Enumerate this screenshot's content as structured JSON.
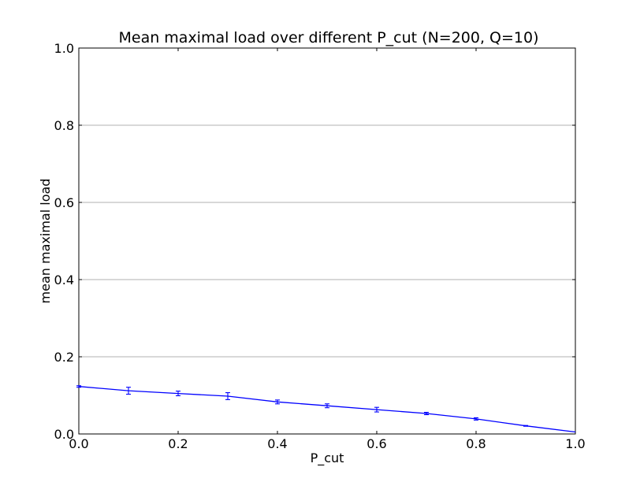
{
  "chart_data": {
    "type": "line",
    "title": "Mean maximal load over different P_cut (N=200, Q=10)",
    "xlabel": "P_cut",
    "ylabel": "mean maximal load",
    "xlim": [
      0.0,
      1.0
    ],
    "ylim": [
      0.0,
      1.0
    ],
    "xticks": [
      "0.0",
      "0.2",
      "0.4",
      "0.6",
      "0.8",
      "1.0"
    ],
    "yticks": [
      "0.0",
      "0.2",
      "0.4",
      "0.6",
      "0.8",
      "1.0"
    ],
    "grid": "y-major",
    "legend": "none",
    "series": [
      {
        "color": "#0000ff",
        "x": [
          0.0,
          0.1,
          0.2,
          0.3,
          0.4,
          0.5,
          0.6,
          0.7,
          0.8,
          0.9,
          1.0
        ],
        "y": [
          0.123,
          0.112,
          0.105,
          0.098,
          0.083,
          0.073,
          0.063,
          0.053,
          0.039,
          0.021,
          0.005
        ],
        "yerr": [
          0.002,
          0.009,
          0.006,
          0.009,
          0.005,
          0.005,
          0.006,
          0.003,
          0.003,
          0.001,
          0.0
        ]
      }
    ]
  }
}
